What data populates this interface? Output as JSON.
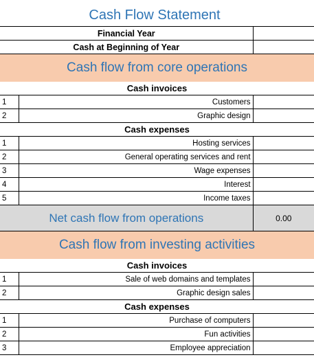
{
  "title": "Cash Flow Statement",
  "header_rows": [
    {
      "label": "Financial Year",
      "value": ""
    },
    {
      "label": "Cash at Beginning of Year",
      "value": ""
    }
  ],
  "core_operations": {
    "heading": "Cash flow from core operations",
    "invoices": {
      "label": "Cash invoices",
      "items": [
        {
          "num": "1",
          "text": "Customers",
          "value": ""
        },
        {
          "num": "2",
          "text": "Graphic design",
          "value": ""
        }
      ]
    },
    "expenses": {
      "label": "Cash expenses",
      "items": [
        {
          "num": "1",
          "text": "Hosting services",
          "value": ""
        },
        {
          "num": "2",
          "text": "General operating services and rent",
          "value": ""
        },
        {
          "num": "3",
          "text": "Wage expenses",
          "value": ""
        },
        {
          "num": "4",
          "text": "Interest",
          "value": ""
        },
        {
          "num": "5",
          "text": "Income taxes",
          "value": ""
        }
      ]
    },
    "net": {
      "label": "Net cash flow from operations",
      "value": "0.00"
    }
  },
  "investing_activities": {
    "heading": "Cash flow from investing activities",
    "invoices": {
      "label": "Cash invoices",
      "items": [
        {
          "num": "1",
          "text": "Sale of web domains and templates",
          "value": ""
        },
        {
          "num": "2",
          "text": "Graphic design sales",
          "value": ""
        }
      ]
    },
    "expenses": {
      "label": "Cash expenses",
      "items": [
        {
          "num": "1",
          "text": "Purchase of computers",
          "value": ""
        },
        {
          "num": "2",
          "text": "Fun activities",
          "value": ""
        },
        {
          "num": "3",
          "text": "Employee appreciation",
          "value": ""
        }
      ]
    }
  },
  "colors": {
    "accent": "#2f75b5",
    "band": "#f8cbad",
    "net": "#d9d9d9"
  }
}
